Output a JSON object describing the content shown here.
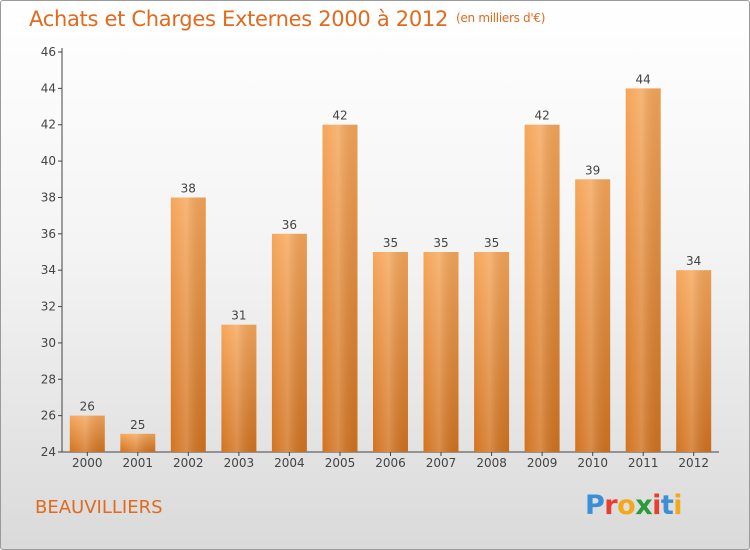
{
  "title": "Achats et Charges Externes 2000 à 2012",
  "unit": "(en milliers d'€)",
  "town": "BEAUVILLIERS",
  "logo": {
    "letters": [
      "P",
      "r",
      "o",
      "x",
      "i",
      "t",
      "i"
    ],
    "colors": [
      "#3a8fd6",
      "#e83e2f",
      "#f2a81b",
      "#2a9a3a",
      "#e83e2f",
      "#3a8fd6",
      "#f2a81b"
    ]
  },
  "chart_data": {
    "type": "bar",
    "categories": [
      "2000",
      "2001",
      "2002",
      "2003",
      "2004",
      "2005",
      "2006",
      "2007",
      "2008",
      "2009",
      "2010",
      "2011",
      "2012"
    ],
    "values": [
      26,
      25,
      38,
      31,
      36,
      42,
      35,
      35,
      35,
      42,
      39,
      44,
      34
    ],
    "ylim": [
      24,
      46
    ],
    "yticks": [
      24,
      26,
      28,
      30,
      32,
      34,
      36,
      38,
      40,
      42,
      44,
      46
    ],
    "grid": false,
    "bar_color_top": "#f6a65a",
    "bar_color_bottom": "#d27320"
  }
}
